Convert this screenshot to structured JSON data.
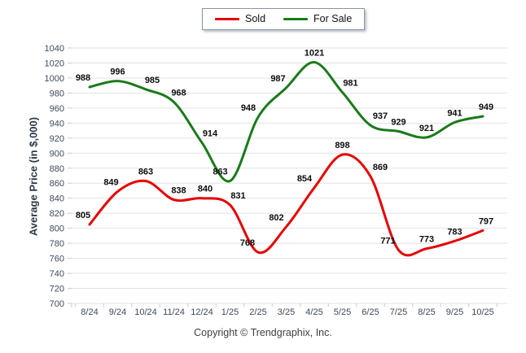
{
  "footer": {
    "copyright": "Copyright © Trendgraphix, Inc."
  },
  "chart_data": {
    "type": "line",
    "title": "",
    "categories": [
      "8/24",
      "9/24",
      "10/24",
      "11/24",
      "12/24",
      "1/25",
      "2/25",
      "3/25",
      "4/25",
      "5/25",
      "6/25",
      "7/25",
      "8/25",
      "9/25",
      "10/25"
    ],
    "series": [
      {
        "name": "Sold",
        "color": "#e60000",
        "values": [
          805,
          849,
          863,
          838,
          840,
          831,
          768,
          802,
          854,
          898,
          869,
          771,
          773,
          783,
          797
        ]
      },
      {
        "name": "For Sale",
        "color": "#1a7a1a",
        "values": [
          988,
          996,
          985,
          968,
          914,
          863,
          948,
          987,
          1021,
          981,
          937,
          929,
          921,
          941,
          949
        ]
      }
    ],
    "xlabel": "",
    "ylabel": "Average Price (in $,000)",
    "ylim": [
      700,
      1040
    ],
    "ytick_step": 20,
    "grid": true,
    "smooth": true,
    "data_labels": true,
    "legend_position": "top-center"
  }
}
